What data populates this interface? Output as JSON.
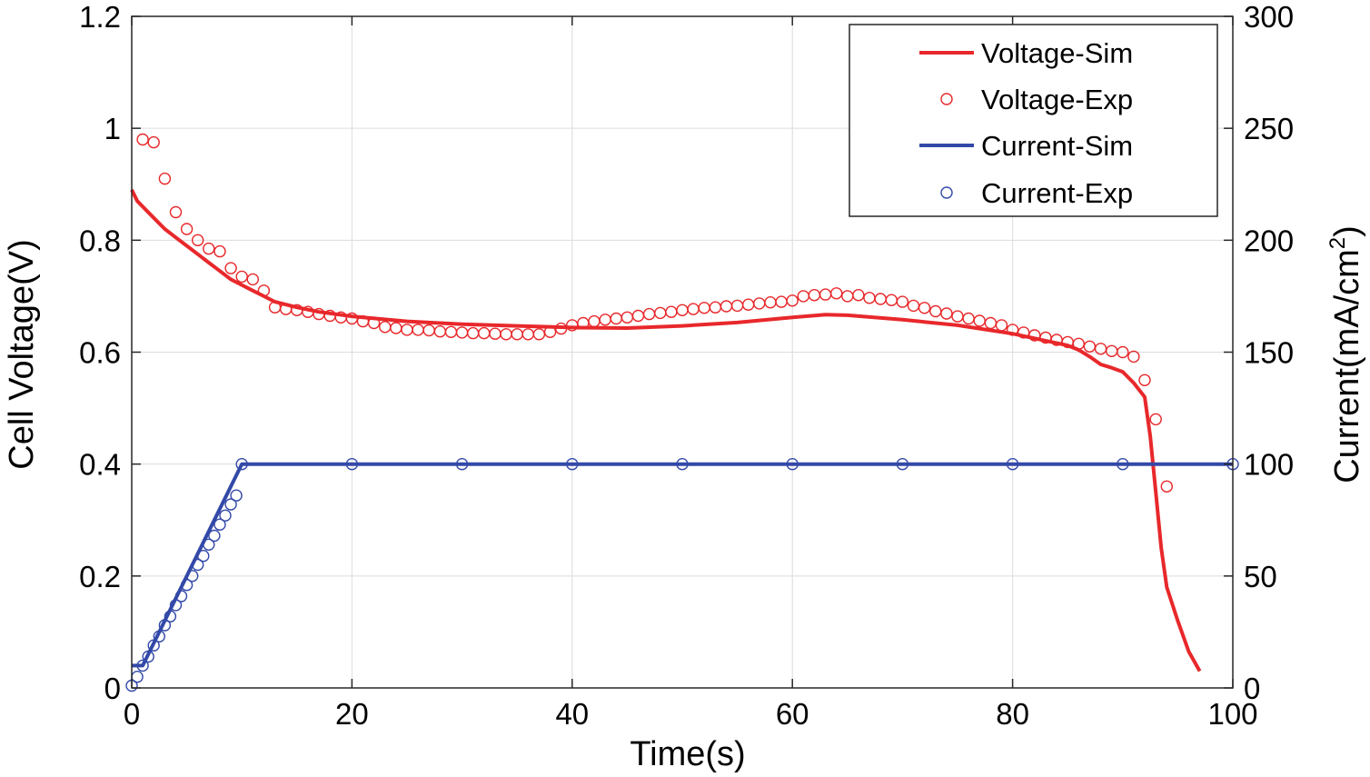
{
  "chart_data": {
    "type": "line",
    "title": "",
    "xlabel": "Time(s)",
    "ylabel_left": "Cell Voltage(V)",
    "ylabel_right_parts": [
      "Current(mA/cm",
      "2",
      ")"
    ],
    "xlim": [
      0,
      100
    ],
    "ylim_left": [
      0,
      1.2
    ],
    "ylim_right": [
      0,
      300
    ],
    "x_ticks": [
      "0",
      "20",
      "40",
      "60",
      "80",
      "100"
    ],
    "y_left_ticks": [
      "0",
      "0.2",
      "0.4",
      "0.6",
      "0.8",
      "1",
      "1.2"
    ],
    "y_right_ticks": [
      "0",
      "50",
      "100",
      "150",
      "200",
      "250",
      "300"
    ],
    "grid": true,
    "legend_position": "top-right",
    "colors": {
      "voltage": "#e8282b",
      "current": "#3349a8"
    },
    "series": [
      {
        "name": "Voltage-Sim",
        "style": "line",
        "axis": "left",
        "color": "#e8282b",
        "x": [
          0,
          0.5,
          1,
          2,
          3,
          4,
          5,
          6,
          7,
          8,
          9,
          10,
          11,
          12,
          13,
          15,
          17,
          20,
          25,
          30,
          35,
          40,
          45,
          50,
          55,
          60,
          63,
          65,
          70,
          75,
          80,
          85,
          86,
          87,
          88,
          89,
          90,
          91,
          92,
          92.5,
          93,
          93.5,
          94,
          95,
          96,
          97
        ],
        "values": [
          0.89,
          0.87,
          0.86,
          0.84,
          0.82,
          0.805,
          0.79,
          0.775,
          0.76,
          0.745,
          0.73,
          0.72,
          0.71,
          0.7,
          0.69,
          0.68,
          0.672,
          0.664,
          0.655,
          0.65,
          0.647,
          0.644,
          0.643,
          0.647,
          0.653,
          0.662,
          0.667,
          0.666,
          0.658,
          0.648,
          0.633,
          0.612,
          0.604,
          0.592,
          0.578,
          0.572,
          0.565,
          0.545,
          0.52,
          0.45,
          0.35,
          0.25,
          0.18,
          0.12,
          0.065,
          0.03
        ]
      },
      {
        "name": "Voltage-Exp",
        "style": "marker",
        "axis": "left",
        "color": "#e8282b",
        "x": [
          1,
          2,
          3,
          4,
          5,
          6,
          7,
          8,
          9,
          10,
          11,
          12,
          13,
          14,
          15,
          16,
          17,
          18,
          19,
          20,
          21,
          22,
          23,
          24,
          25,
          26,
          27,
          28,
          29,
          30,
          31,
          32,
          33,
          34,
          35,
          36,
          37,
          38,
          39,
          40,
          41,
          42,
          43,
          44,
          45,
          46,
          47,
          48,
          49,
          50,
          51,
          52,
          53,
          54,
          55,
          56,
          57,
          58,
          59,
          60,
          61,
          62,
          63,
          64,
          65,
          66,
          67,
          68,
          69,
          70,
          71,
          72,
          73,
          74,
          75,
          76,
          77,
          78,
          79,
          80,
          81,
          82,
          83,
          84,
          85,
          86,
          87,
          88,
          89,
          90,
          91,
          92,
          93,
          94
        ],
        "values": [
          0.98,
          0.975,
          0.91,
          0.85,
          0.82,
          0.8,
          0.785,
          0.78,
          0.75,
          0.735,
          0.73,
          0.71,
          0.68,
          0.677,
          0.675,
          0.672,
          0.668,
          0.665,
          0.662,
          0.66,
          0.655,
          0.652,
          0.645,
          0.643,
          0.64,
          0.64,
          0.639,
          0.637,
          0.636,
          0.635,
          0.634,
          0.634,
          0.633,
          0.632,
          0.632,
          0.632,
          0.632,
          0.636,
          0.642,
          0.648,
          0.652,
          0.655,
          0.658,
          0.66,
          0.662,
          0.665,
          0.668,
          0.67,
          0.672,
          0.675,
          0.677,
          0.679,
          0.68,
          0.682,
          0.683,
          0.685,
          0.687,
          0.689,
          0.69,
          0.692,
          0.7,
          0.702,
          0.703,
          0.705,
          0.7,
          0.702,
          0.697,
          0.695,
          0.693,
          0.69,
          0.683,
          0.679,
          0.673,
          0.669,
          0.664,
          0.66,
          0.656,
          0.652,
          0.648,
          0.64,
          0.635,
          0.63,
          0.626,
          0.622,
          0.618,
          0.615,
          0.61,
          0.606,
          0.602,
          0.6,
          0.592,
          0.55,
          0.48,
          0.36
        ]
      },
      {
        "name": "Current-Sim",
        "style": "line",
        "axis": "right",
        "color": "#3349a8",
        "x": [
          0,
          1,
          10,
          100
        ],
        "values": [
          10,
          10,
          100,
          100
        ]
      },
      {
        "name": "Current-Exp",
        "style": "marker",
        "axis": "right",
        "color": "#3349a8",
        "x": [
          0,
          0.5,
          1,
          1.5,
          2,
          2.5,
          3,
          3.5,
          4,
          4.5,
          5,
          5.5,
          6,
          6.5,
          7,
          7.5,
          8,
          8.5,
          9,
          9.5,
          10,
          20,
          30,
          40,
          50,
          60,
          70,
          80,
          90,
          100
        ],
        "values": [
          1,
          5,
          10,
          14,
          19,
          23,
          28,
          32,
          37,
          41,
          46,
          50,
          55,
          59,
          64,
          68,
          73,
          77,
          82,
          86,
          100,
          100,
          100,
          100,
          100,
          100,
          100,
          100,
          100,
          100
        ]
      }
    ]
  }
}
